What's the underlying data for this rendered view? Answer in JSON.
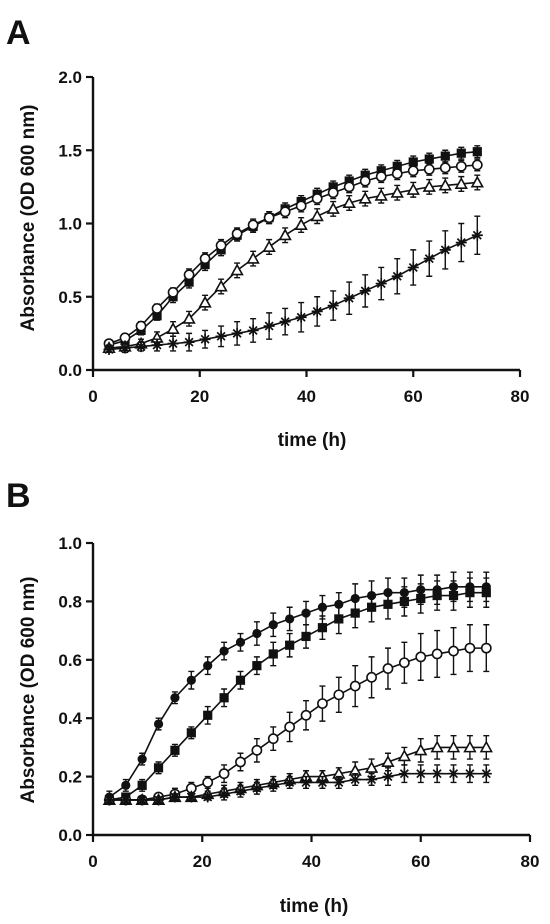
{
  "chart_data": [
    {
      "type": "line",
      "panel_label": "A",
      "xlabel": "time (h)",
      "ylabel": "Absorbance (OD 600 nm)",
      "xlim": [
        0,
        80
      ],
      "ylim": [
        0,
        2.0
      ],
      "xticks": [
        0,
        20,
        40,
        60,
        80
      ],
      "yticks": [
        0.0,
        0.5,
        1.0,
        1.5,
        2.0
      ],
      "ytick_labels": [
        "0.0",
        "0.5",
        "1.0",
        "1.5",
        "2.0"
      ],
      "xtick_labels": [
        "0",
        "20",
        "40",
        "60",
        "80"
      ],
      "grid": false,
      "x": [
        3,
        6,
        9,
        12,
        15,
        18,
        21,
        24,
        27,
        30,
        33,
        36,
        39,
        42,
        45,
        48,
        51,
        54,
        57,
        60,
        63,
        66,
        69,
        72
      ],
      "series": [
        {
          "marker": "filled-square",
          "values": [
            0.17,
            0.2,
            0.27,
            0.37,
            0.5,
            0.6,
            0.72,
            0.82,
            0.92,
            0.98,
            1.04,
            1.1,
            1.15,
            1.2,
            1.25,
            1.29,
            1.33,
            1.36,
            1.39,
            1.42,
            1.44,
            1.46,
            1.48,
            1.49
          ],
          "errors": [
            0.02,
            0.02,
            0.03,
            0.03,
            0.04,
            0.04,
            0.04,
            0.04,
            0.04,
            0.04,
            0.04,
            0.04,
            0.04,
            0.04,
            0.04,
            0.04,
            0.04,
            0.04,
            0.04,
            0.04,
            0.04,
            0.04,
            0.04,
            0.04
          ]
        },
        {
          "marker": "open-circle",
          "values": [
            0.18,
            0.22,
            0.3,
            0.42,
            0.53,
            0.65,
            0.76,
            0.85,
            0.93,
            0.99,
            1.04,
            1.08,
            1.12,
            1.17,
            1.21,
            1.25,
            1.29,
            1.32,
            1.34,
            1.36,
            1.37,
            1.38,
            1.39,
            1.4
          ],
          "errors": [
            0.02,
            0.02,
            0.03,
            0.03,
            0.03,
            0.04,
            0.04,
            0.04,
            0.04,
            0.04,
            0.04,
            0.04,
            0.04,
            0.04,
            0.04,
            0.04,
            0.04,
            0.04,
            0.04,
            0.04,
            0.04,
            0.04,
            0.04,
            0.04
          ]
        },
        {
          "marker": "open-triangle",
          "values": [
            0.15,
            0.16,
            0.18,
            0.22,
            0.28,
            0.35,
            0.46,
            0.57,
            0.68,
            0.76,
            0.84,
            0.92,
            0.99,
            1.05,
            1.1,
            1.14,
            1.17,
            1.19,
            1.21,
            1.23,
            1.25,
            1.26,
            1.27,
            1.28
          ],
          "errors": [
            0.02,
            0.02,
            0.03,
            0.04,
            0.05,
            0.05,
            0.05,
            0.05,
            0.05,
            0.05,
            0.05,
            0.05,
            0.05,
            0.05,
            0.05,
            0.05,
            0.05,
            0.05,
            0.05,
            0.05,
            0.05,
            0.05,
            0.05,
            0.05
          ]
        },
        {
          "marker": "asterisk",
          "values": [
            0.14,
            0.15,
            0.16,
            0.17,
            0.18,
            0.19,
            0.21,
            0.23,
            0.25,
            0.27,
            0.3,
            0.33,
            0.36,
            0.4,
            0.44,
            0.49,
            0.54,
            0.59,
            0.64,
            0.7,
            0.76,
            0.82,
            0.87,
            0.92
          ],
          "errors": [
            0.02,
            0.03,
            0.03,
            0.04,
            0.05,
            0.06,
            0.06,
            0.07,
            0.08,
            0.08,
            0.09,
            0.09,
            0.1,
            0.1,
            0.1,
            0.11,
            0.11,
            0.11,
            0.12,
            0.12,
            0.12,
            0.13,
            0.13,
            0.13
          ]
        }
      ]
    },
    {
      "type": "line",
      "panel_label": "B",
      "xlabel": "time (h)",
      "ylabel": "Absorbance (OD 600 nm)",
      "xlim": [
        0,
        80
      ],
      "ylim": [
        0,
        1.0
      ],
      "xticks": [
        0,
        20,
        40,
        60,
        80
      ],
      "yticks": [
        0.0,
        0.2,
        0.4,
        0.6,
        0.8,
        1.0
      ],
      "ytick_labels": [
        "0.0",
        "0.2",
        "0.4",
        "0.6",
        "0.8",
        "1.0"
      ],
      "xtick_labels": [
        "0",
        "20",
        "40",
        "60",
        "80"
      ],
      "grid": false,
      "x": [
        3,
        6,
        9,
        12,
        15,
        18,
        21,
        24,
        27,
        30,
        33,
        36,
        39,
        42,
        45,
        48,
        51,
        54,
        57,
        60,
        63,
        66,
        69,
        72
      ],
      "series": [
        {
          "marker": "filled-circle",
          "values": [
            0.13,
            0.17,
            0.26,
            0.38,
            0.47,
            0.53,
            0.58,
            0.63,
            0.66,
            0.69,
            0.72,
            0.74,
            0.76,
            0.78,
            0.79,
            0.81,
            0.82,
            0.83,
            0.83,
            0.84,
            0.84,
            0.85,
            0.85,
            0.85
          ],
          "errors": [
            0.02,
            0.02,
            0.02,
            0.02,
            0.02,
            0.03,
            0.03,
            0.03,
            0.03,
            0.04,
            0.04,
            0.04,
            0.04,
            0.04,
            0.04,
            0.05,
            0.05,
            0.05,
            0.05,
            0.05,
            0.05,
            0.05,
            0.05,
            0.05
          ]
        },
        {
          "marker": "filled-square",
          "values": [
            0.12,
            0.13,
            0.17,
            0.23,
            0.29,
            0.35,
            0.41,
            0.47,
            0.53,
            0.58,
            0.62,
            0.65,
            0.68,
            0.71,
            0.74,
            0.76,
            0.78,
            0.79,
            0.8,
            0.81,
            0.82,
            0.82,
            0.83,
            0.83
          ],
          "errors": [
            0.01,
            0.01,
            0.02,
            0.02,
            0.02,
            0.02,
            0.03,
            0.03,
            0.03,
            0.03,
            0.04,
            0.04,
            0.04,
            0.04,
            0.05,
            0.05,
            0.05,
            0.05,
            0.05,
            0.05,
            0.05,
            0.05,
            0.05,
            0.05
          ]
        },
        {
          "marker": "open-circle",
          "values": [
            0.12,
            0.12,
            0.12,
            0.13,
            0.14,
            0.16,
            0.18,
            0.21,
            0.25,
            0.29,
            0.33,
            0.37,
            0.41,
            0.45,
            0.48,
            0.51,
            0.54,
            0.57,
            0.59,
            0.61,
            0.62,
            0.63,
            0.64,
            0.64
          ],
          "errors": [
            0.01,
            0.01,
            0.01,
            0.01,
            0.02,
            0.02,
            0.02,
            0.03,
            0.03,
            0.04,
            0.04,
            0.05,
            0.05,
            0.06,
            0.06,
            0.07,
            0.07,
            0.07,
            0.07,
            0.08,
            0.08,
            0.08,
            0.08,
            0.08
          ]
        },
        {
          "marker": "open-triangle",
          "values": [
            0.12,
            0.12,
            0.12,
            0.12,
            0.13,
            0.13,
            0.14,
            0.15,
            0.16,
            0.17,
            0.18,
            0.19,
            0.2,
            0.2,
            0.21,
            0.22,
            0.23,
            0.25,
            0.27,
            0.29,
            0.3,
            0.3,
            0.3,
            0.3
          ],
          "errors": [
            0.01,
            0.01,
            0.01,
            0.01,
            0.01,
            0.01,
            0.01,
            0.02,
            0.02,
            0.02,
            0.02,
            0.02,
            0.02,
            0.02,
            0.02,
            0.03,
            0.03,
            0.03,
            0.03,
            0.04,
            0.04,
            0.04,
            0.04,
            0.04
          ]
        },
        {
          "marker": "asterisk",
          "values": [
            0.12,
            0.12,
            0.12,
            0.12,
            0.13,
            0.13,
            0.13,
            0.14,
            0.15,
            0.16,
            0.17,
            0.18,
            0.18,
            0.18,
            0.18,
            0.19,
            0.19,
            0.2,
            0.21,
            0.21,
            0.21,
            0.21,
            0.21,
            0.21
          ],
          "errors": [
            0.01,
            0.01,
            0.01,
            0.01,
            0.01,
            0.01,
            0.01,
            0.02,
            0.02,
            0.02,
            0.02,
            0.02,
            0.02,
            0.02,
            0.02,
            0.02,
            0.02,
            0.03,
            0.03,
            0.03,
            0.03,
            0.03,
            0.03,
            0.03
          ]
        }
      ]
    }
  ]
}
